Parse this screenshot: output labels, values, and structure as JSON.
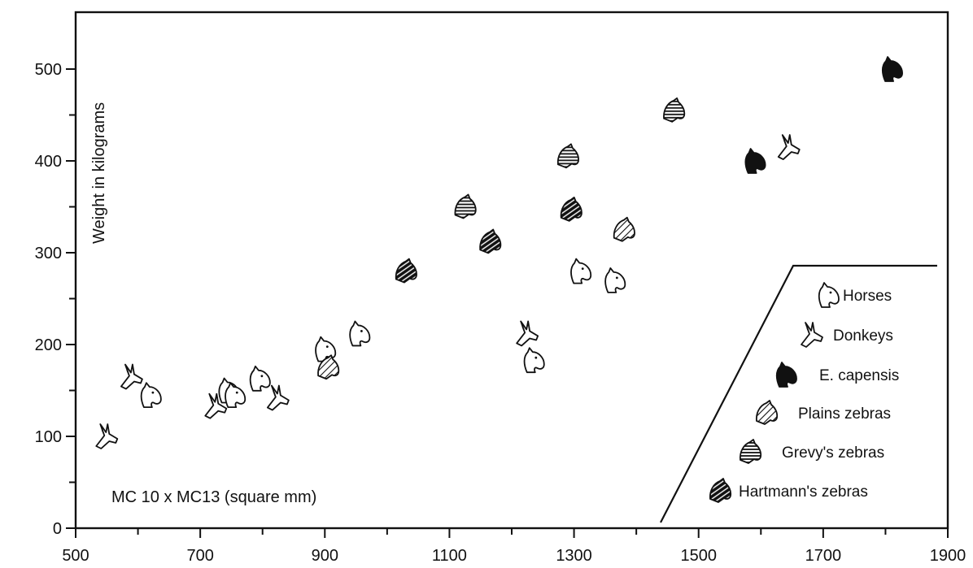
{
  "chart_data": {
    "type": "scatter",
    "title": "",
    "xlabel": "MC 10 x MC13 (square mm)",
    "ylabel": "Weight in kilograms",
    "xlim": [
      500,
      1900
    ],
    "ylim": [
      0,
      550
    ],
    "x_ticks": [
      500,
      700,
      900,
      1100,
      1300,
      1500,
      1700,
      1900
    ],
    "x_minor_ticks": [
      600,
      800,
      1000,
      1200,
      1400,
      1600,
      1800
    ],
    "y_ticks": [
      0,
      100,
      200,
      300,
      400,
      500
    ],
    "y_minor_ticks": [
      50,
      150,
      250,
      350,
      450
    ],
    "grid": false,
    "legend_position": "bottom-right",
    "series": [
      {
        "name": "Horses",
        "icon": "horse-head-icon",
        "style": "outline",
        "points": [
          [
            620,
            145
          ],
          [
            745,
            150
          ],
          [
            755,
            145
          ],
          [
            795,
            163
          ],
          [
            900,
            195
          ],
          [
            955,
            212
          ],
          [
            1235,
            183
          ],
          [
            1310,
            280
          ],
          [
            1365,
            270
          ]
        ]
      },
      {
        "name": "Donkeys",
        "icon": "donkey-head-icon",
        "style": "outline",
        "points": [
          [
            550,
            100
          ],
          [
            590,
            165
          ],
          [
            725,
            133
          ],
          [
            825,
            142
          ],
          [
            1225,
            212
          ],
          [
            1645,
            415
          ]
        ]
      },
      {
        "name": "E. capensis",
        "icon": "horse-head-icon",
        "style": "black",
        "points": [
          [
            1590,
            400
          ],
          [
            1810,
            500
          ]
        ]
      },
      {
        "name": "Plains zebras",
        "icon": "zebra-head-icon",
        "style": "striped",
        "points": [
          [
            905,
            175
          ],
          [
            1380,
            325
          ]
        ]
      },
      {
        "name": "Grevy's zebras",
        "icon": "zebra-head-icon",
        "style": "dense-striped",
        "points": [
          [
            1125,
            350
          ],
          [
            1290,
            405
          ],
          [
            1460,
            455
          ]
        ]
      },
      {
        "name": "Hartmann's zebras",
        "icon": "zebra-head-icon",
        "style": "dark-striped",
        "points": [
          [
            1030,
            280
          ],
          [
            1165,
            312
          ],
          [
            1295,
            347
          ]
        ]
      }
    ]
  }
}
